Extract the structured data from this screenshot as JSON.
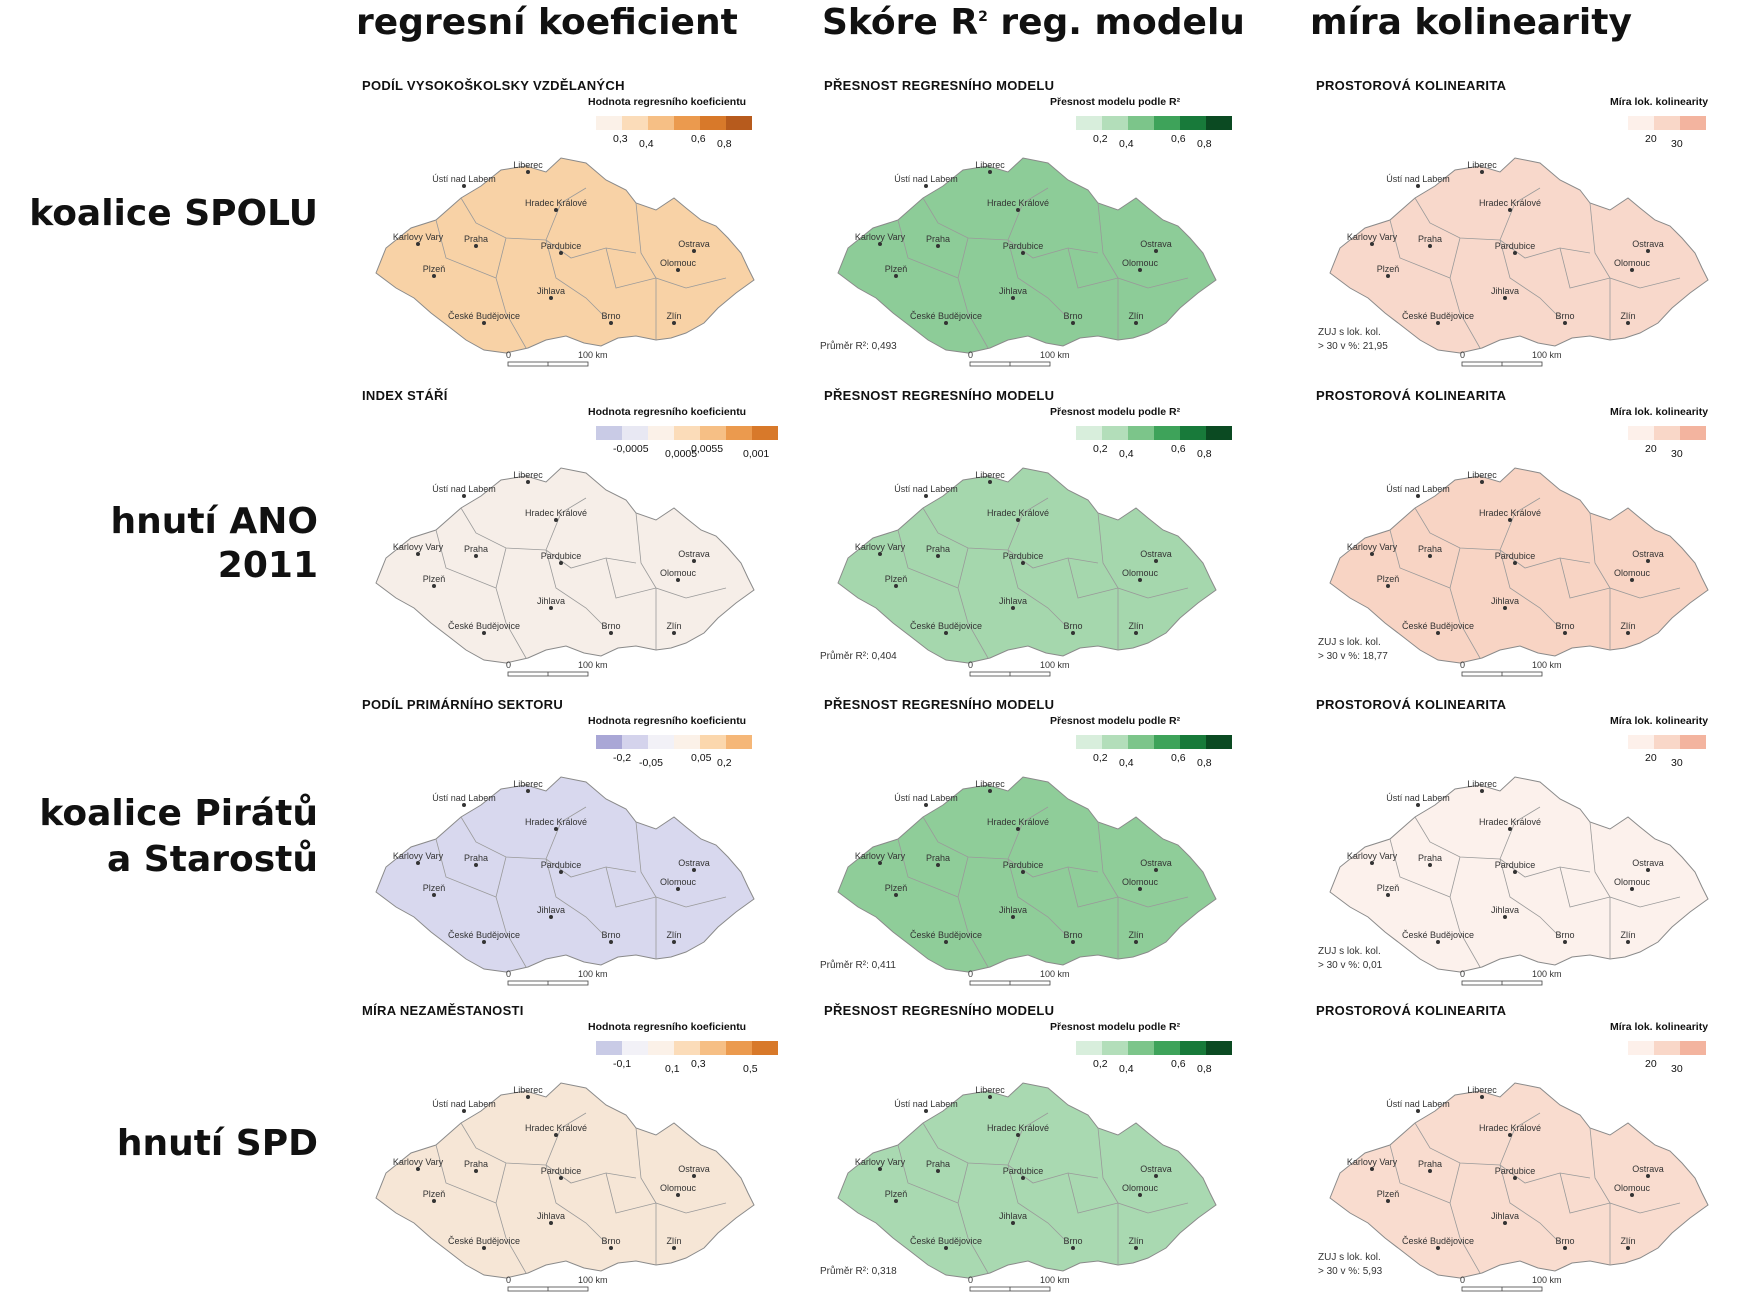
{
  "column_headers": {
    "coef": "regresní koeficient",
    "r2_pre": "Skóre R",
    "r2_sup": "2",
    "r2_post": "reg. modelu",
    "col": "míra kolinearity"
  },
  "rows": [
    {
      "label_lines": [
        "koalice SPOLU"
      ],
      "coef": {
        "title": "PODÍL VYSOKOŠKOLSKY VZDĚLANÝCH",
        "legend_title": "Hodnota regresního koeficientu",
        "colors": [
          "#fbf1e8",
          "#fbdcb9",
          "#f6bf85",
          "#eb9a4e",
          "#d8792a",
          "#b75b1d"
        ],
        "ticks": [
          "0,3",
          "0,4",
          "0,6",
          "0,8"
        ]
      },
      "r2": {
        "title": "PŘESNOST REGRESNÍHO MODELU",
        "legend_title": "Přesnost modelu podle R²",
        "mean": "Průměr R²: 0,493"
      },
      "col": {
        "title": "PROSTOROVÁ KOLINEARITA",
        "legend_title": "Míra lok. kolinearity",
        "zuj_line1": "ZUJ s lok. kol.",
        "zuj_line2": "> 30 v %: 21,95"
      }
    },
    {
      "label_lines": [
        "hnutí ANO 2011"
      ],
      "coef": {
        "title": "INDEX STÁŘÍ",
        "legend_title": "Hodnota regresního koeficientu",
        "colors": [
          "#c9cbe6",
          "#e8e8f3",
          "#fbf1e8",
          "#fbdcb9",
          "#f6bf85",
          "#eb9a4e",
          "#d8792a"
        ],
        "ticks": [
          "-0,0005",
          "0,0005",
          "0,0055",
          "0,001"
        ]
      },
      "r2": {
        "title": "PŘESNOST REGRESNÍHO MODELU",
        "legend_title": "Přesnost modelu podle R²",
        "mean": "Průměr R²: 0,404"
      },
      "col": {
        "title": "PROSTOROVÁ KOLINEARITA",
        "legend_title": "Míra lok. kolinearity",
        "zuj_line1": "ZUJ s lok. kol.",
        "zuj_line2": "> 30 v %: 18,77"
      }
    },
    {
      "label_lines": [
        "koalice Pirátů",
        "a Starostů"
      ],
      "coef": {
        "title": "PODÍL PRIMÁRNÍHO SEKTORU",
        "legend_title": "Hodnota regresního koeficientu",
        "colors": [
          "#a9a7d6",
          "#d4d3ec",
          "#f2f1f7",
          "#fbf1e8",
          "#fbd7ad",
          "#f5b778"
        ],
        "ticks": [
          "-0,2",
          "-0,05",
          "0,05",
          "0,2"
        ]
      },
      "r2": {
        "title": "PŘESNOST REGRESNÍHO MODELU",
        "legend_title": "Přesnost modelu podle R²",
        "mean": "Průměr R²: 0,411"
      },
      "col": {
        "title": "PROSTOROVÁ KOLINEARITA",
        "legend_title": "Míra lok. kolinearity",
        "zuj_line1": "ZUJ s lok. kol.",
        "zuj_line2": "> 30 v %: 0,01"
      }
    },
    {
      "label_lines": [
        "hnutí SPD"
      ],
      "coef": {
        "title": "MÍRA NEZAMĚSTANOSTI",
        "legend_title": "Hodnota regresního koeficientu",
        "colors": [
          "#c9cbe6",
          "#f2f1f7",
          "#fbf1e8",
          "#fbdcb9",
          "#f6bf85",
          "#eb9a4e",
          "#d8792a"
        ],
        "ticks": [
          "-0,1",
          "0,1",
          "0,3",
          "0,5"
        ]
      },
      "r2": {
        "title": "PŘESNOST REGRESNÍHO MODELU",
        "legend_title": "Přesnost modelu podle R²",
        "mean": "Průměr R²: 0,318"
      },
      "col": {
        "title": "PROSTOROVÁ KOLINEARITA",
        "legend_title": "Míra lok. kolinearity",
        "zuj_line1": "ZUJ s lok. kol.",
        "zuj_line2": "> 30 v %: 5,93"
      }
    }
  ],
  "r2_legend": {
    "colors": [
      "#d8eedc",
      "#b3deba",
      "#7cc58a",
      "#3ea35a",
      "#187a3a",
      "#0b4a22"
    ],
    "ticks": [
      "0,2",
      "0,4",
      "0,6",
      "0,8"
    ]
  },
  "col_legend": {
    "colors": [
      "#fdf0ea",
      "#f9d7c8",
      "#f3b49f"
    ],
    "ticks": [
      "20",
      "30"
    ]
  },
  "map_fill": {
    "coef": [
      "#f8d2a6",
      "#f6eee8",
      "#d8d8ee",
      "#f6e6d6"
    ],
    "r2": [
      "#8dcc98",
      "#a5d7ad",
      "#8fcd99",
      "#a9d9b1"
    ],
    "col": [
      "#f8d8cb",
      "#f8d4c4",
      "#fcf1ec",
      "#f9dccf"
    ]
  },
  "cities": [
    "Ústí nad Labem",
    "Liberec",
    "Hradec Králové",
    "Karlovy Vary",
    "Praha",
    "Pardubice",
    "Ostrava",
    "Olomouc",
    "Plzeň",
    "Jihlava",
    "České Budějovice",
    "Brno",
    "Zlín"
  ],
  "scalebar": {
    "start": "0",
    "end": "100 km"
  }
}
